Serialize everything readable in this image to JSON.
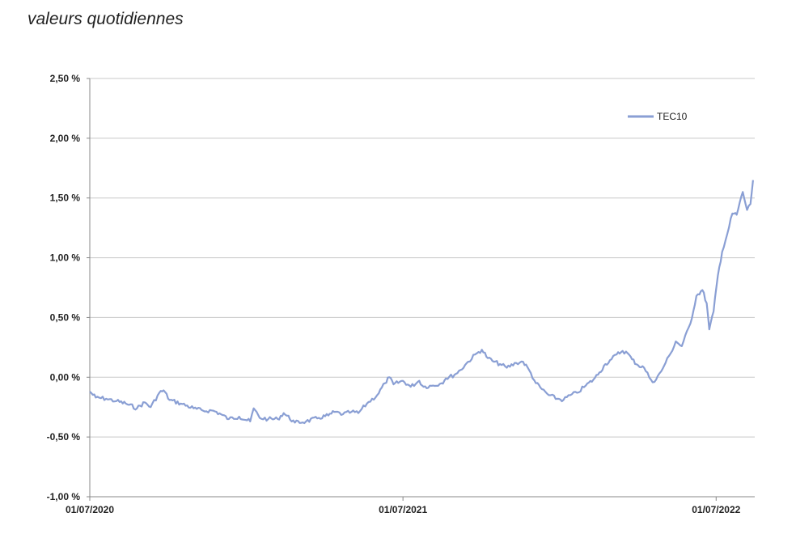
{
  "header": {
    "subtitle": "valeurs quotidiennes"
  },
  "colors": {
    "series": "#8a9fd4",
    "grid": "#c8c8c8",
    "axis": "#888888"
  },
  "chart_data": {
    "type": "line",
    "title": "",
    "xlabel": "",
    "ylabel": "",
    "x_range": [
      "2020-07-01",
      "2022-08-15"
    ],
    "ylim": [
      -1.0,
      2.5
    ],
    "y_ticks": [
      2.5,
      2.0,
      1.5,
      1.0,
      0.5,
      0.0,
      -0.5,
      -1.0
    ],
    "y_tick_labels": [
      "2,50 %",
      "2,00 %",
      "1,50 %",
      "1,00 %",
      "0,50 %",
      "0,00 %",
      "-0,50 %",
      "-1,00 %"
    ],
    "x_ticks": [
      "2020-07-01",
      "2021-07-01",
      "2022-07-01"
    ],
    "x_tick_labels": [
      "01/07/2020",
      "01/07/2021",
      "01/07/2022"
    ],
    "grid": true,
    "legend": "top-right",
    "series": [
      {
        "name": "TEC10",
        "points": [
          [
            "2020-07-01",
            -0.12
          ],
          [
            "2020-07-08",
            -0.17
          ],
          [
            "2020-07-20",
            -0.18
          ],
          [
            "2020-08-01",
            -0.2
          ],
          [
            "2020-08-12",
            -0.22
          ],
          [
            "2020-08-25",
            -0.26
          ],
          [
            "2020-09-03",
            -0.21
          ],
          [
            "2020-09-10",
            -0.25
          ],
          [
            "2020-09-20",
            -0.13
          ],
          [
            "2020-09-25",
            -0.11
          ],
          [
            "2020-10-02",
            -0.19
          ],
          [
            "2020-10-15",
            -0.22
          ],
          [
            "2020-10-30",
            -0.26
          ],
          [
            "2020-11-10",
            -0.28
          ],
          [
            "2020-11-22",
            -0.28
          ],
          [
            "2020-12-01",
            -0.31
          ],
          [
            "2020-12-10",
            -0.35
          ],
          [
            "2020-12-22",
            -0.33
          ],
          [
            "2021-01-04",
            -0.37
          ],
          [
            "2021-01-08",
            -0.26
          ],
          [
            "2021-01-15",
            -0.34
          ],
          [
            "2021-01-25",
            -0.35
          ],
          [
            "2021-02-05",
            -0.35
          ],
          [
            "2021-02-12",
            -0.3
          ],
          [
            "2021-02-25",
            -0.38
          ],
          [
            "2021-03-10",
            -0.37
          ],
          [
            "2021-03-25",
            -0.34
          ],
          [
            "2021-04-05",
            -0.32
          ],
          [
            "2021-04-12",
            -0.29
          ],
          [
            "2021-04-22",
            -0.31
          ],
          [
            "2021-05-02",
            -0.29
          ],
          [
            "2021-05-10",
            -0.3
          ],
          [
            "2021-05-20",
            -0.22
          ],
          [
            "2021-06-01",
            -0.15
          ],
          [
            "2021-06-10",
            -0.05
          ],
          [
            "2021-06-15",
            0.0
          ],
          [
            "2021-06-20",
            -0.06
          ],
          [
            "2021-07-01",
            -0.03
          ],
          [
            "2021-07-10",
            -0.08
          ],
          [
            "2021-07-20",
            -0.03
          ],
          [
            "2021-07-25",
            -0.08
          ],
          [
            "2021-08-05",
            -0.07
          ],
          [
            "2021-08-15",
            -0.05
          ],
          [
            "2021-08-20",
            -0.01
          ],
          [
            "2021-08-30",
            0.02
          ],
          [
            "2021-09-06",
            0.06
          ],
          [
            "2021-09-15",
            0.13
          ],
          [
            "2021-09-25",
            0.2
          ],
          [
            "2021-10-01",
            0.23
          ],
          [
            "2021-10-08",
            0.16
          ],
          [
            "2021-10-15",
            0.13
          ],
          [
            "2021-10-22",
            0.11
          ],
          [
            "2021-10-30",
            0.08
          ],
          [
            "2021-11-10",
            0.12
          ],
          [
            "2021-11-18",
            0.13
          ],
          [
            "2021-11-25",
            0.06
          ],
          [
            "2021-12-03",
            -0.05
          ],
          [
            "2021-12-10",
            -0.1
          ],
          [
            "2021-12-18",
            -0.15
          ],
          [
            "2021-12-28",
            -0.18
          ],
          [
            "2022-01-04",
            -0.19
          ],
          [
            "2022-01-12",
            -0.15
          ],
          [
            "2022-01-20",
            -0.13
          ],
          [
            "2022-01-30",
            -0.07
          ],
          [
            "2022-02-08",
            -0.02
          ],
          [
            "2022-02-15",
            0.04
          ],
          [
            "2022-02-22",
            0.11
          ],
          [
            "2022-03-01",
            0.15
          ],
          [
            "2022-03-07",
            0.19
          ],
          [
            "2022-03-14",
            0.22
          ],
          [
            "2022-03-20",
            0.2
          ],
          [
            "2022-03-25",
            0.15
          ],
          [
            "2022-04-01",
            0.1
          ],
          [
            "2022-04-08",
            0.08
          ],
          [
            "2022-04-14",
            0.0
          ],
          [
            "2022-04-20",
            -0.04
          ],
          [
            "2022-04-28",
            0.05
          ],
          [
            "2022-05-03",
            0.12
          ],
          [
            "2022-05-09",
            0.2
          ],
          [
            "2022-05-15",
            0.3
          ],
          [
            "2022-05-22",
            0.26
          ],
          [
            "2022-06-01",
            0.45
          ],
          [
            "2022-06-08",
            0.68
          ],
          [
            "2022-06-15",
            0.73
          ],
          [
            "2022-06-20",
            0.62
          ],
          [
            "2022-06-23",
            0.4
          ],
          [
            "2022-06-28",
            0.55
          ],
          [
            "2022-07-03",
            0.85
          ],
          [
            "2022-07-08",
            1.05
          ],
          [
            "2022-07-14",
            1.2
          ],
          [
            "2022-07-20",
            1.37
          ],
          [
            "2022-07-25",
            1.36
          ],
          [
            "2022-08-01",
            1.55
          ],
          [
            "2022-08-06",
            1.4
          ],
          [
            "2022-08-10",
            1.45
          ],
          [
            "2022-08-13",
            1.65
          ]
        ]
      }
    ]
  }
}
